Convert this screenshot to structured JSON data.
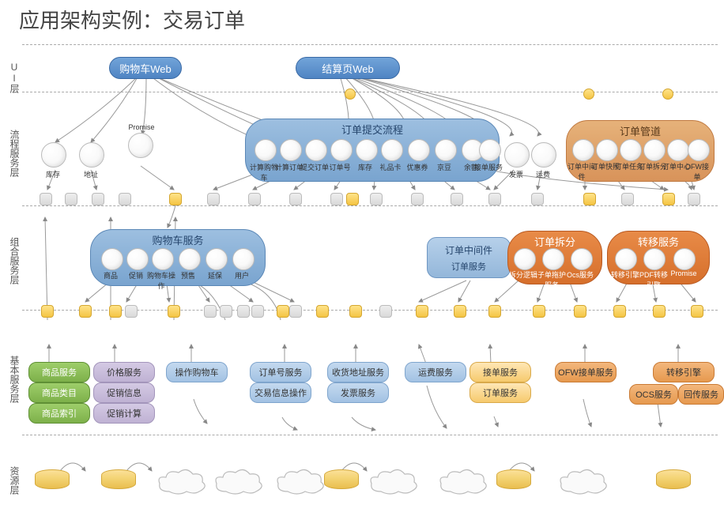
{
  "title": "应用架构实例：交易订单",
  "layers": {
    "ui": "UI层",
    "flow": "流程服务层",
    "combo": "组合服务层",
    "base": "基本服务层",
    "res": "资源层"
  },
  "ui_nodes": {
    "cart": "购物车Web",
    "checkout": "结算页Web"
  },
  "flow": {
    "single": {
      "stock": "库存",
      "addr": "地址",
      "promise": "Promise",
      "invoice": "发票",
      "ship": "运费"
    },
    "submit": {
      "title": "订单提交流程",
      "items": [
        "计算购物车",
        "计算订单",
        "提交订单",
        "订单号",
        "库存",
        "礼品卡",
        "优惠券",
        "京豆",
        "余额",
        "接单服务"
      ]
    },
    "pipe": {
      "title": "订单管道",
      "items": [
        "订单中间件",
        "订单快照",
        "订单任务",
        "订单拆分",
        "订单中心",
        "OFW接单"
      ]
    }
  },
  "combo": {
    "cart": {
      "title": "购物车服务",
      "items": [
        "商品",
        "促销",
        "购物车操作",
        "预售",
        "延保",
        "用户"
      ]
    },
    "mid": {
      "title": "订单中间件",
      "sub": "订单服务"
    },
    "split": {
      "title": "订单拆分",
      "items": [
        "拆分逻辑",
        "子单拖护服务",
        "Ocs服务"
      ]
    },
    "trans": {
      "title": "转移服务",
      "items": [
        "转移引擎",
        "PDF转移引擎",
        "Promise"
      ]
    }
  },
  "base": {
    "col1": [
      "商品服务",
      "商品类目",
      "商品索引"
    ],
    "col2": [
      "价格服务",
      "促销信息",
      "促销计算"
    ],
    "col3": [
      "操作购物车"
    ],
    "col4": [
      "订单号服务",
      "交易信息操作"
    ],
    "col5": [
      "收货地址服务",
      "发票服务"
    ],
    "col6": [
      "运费服务"
    ],
    "col7": [
      "接单服务",
      "订单服务"
    ],
    "col8": [
      "OFW接单服务"
    ],
    "col9": [
      "转移引擎"
    ],
    "col10": [
      "OCS服务",
      "回传服务"
    ]
  }
}
